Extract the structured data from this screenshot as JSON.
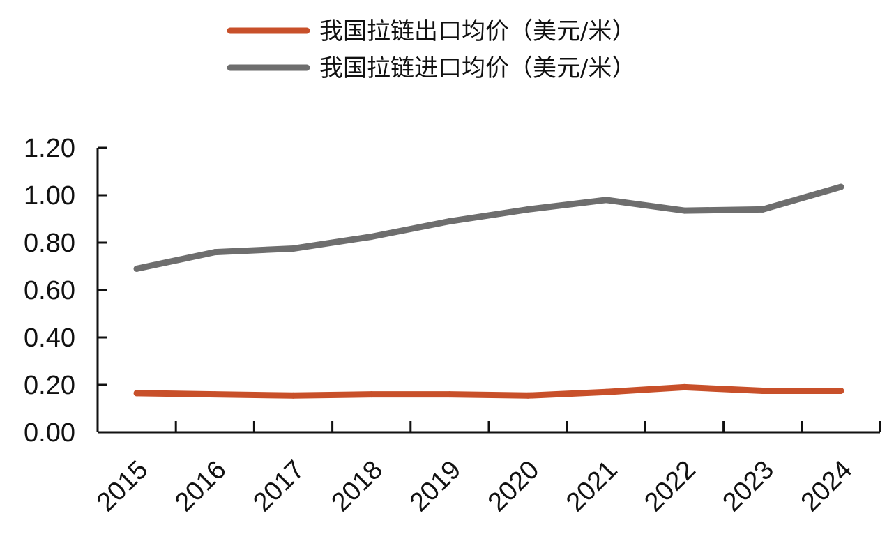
{
  "chart_data": {
    "type": "line",
    "categories": [
      "2015",
      "2016",
      "2017",
      "2018",
      "2019",
      "2020",
      "2021",
      "2022",
      "2023",
      "2024"
    ],
    "series": [
      {
        "name": "我国拉链出口均价（美元/米）",
        "color": "#C8502A",
        "values": [
          0.165,
          0.16,
          0.155,
          0.16,
          0.16,
          0.155,
          0.17,
          0.19,
          0.175,
          0.175
        ]
      },
      {
        "name": "我国拉链进口均价（美元/米）",
        "color": "#6E6E6E",
        "values": [
          0.69,
          0.76,
          0.775,
          0.825,
          0.89,
          0.94,
          0.98,
          0.935,
          0.94,
          1.035
        ]
      }
    ],
    "y_ticks": [
      "0.00",
      "0.20",
      "0.40",
      "0.60",
      "0.80",
      "1.00",
      "1.20"
    ],
    "ylim": [
      0,
      1.2
    ],
    "grid": false,
    "legend_position": "top-center"
  }
}
